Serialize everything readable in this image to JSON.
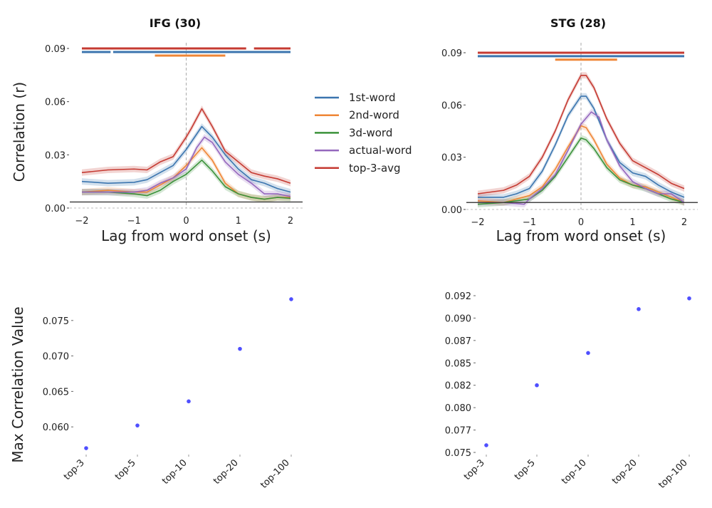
{
  "chart_data": [
    {
      "type": "line",
      "title": "IFG (30)",
      "xlabel": "Lag from word onset (s)",
      "ylabel": "Correlation (r)",
      "xlim": [
        -2,
        2
      ],
      "ylim": [
        0,
        0.09
      ],
      "xticks": [
        "−2",
        "−1",
        "0",
        "1",
        "2"
      ],
      "xtick_values": [
        -2,
        -1,
        0,
        1,
        2
      ],
      "yticks": [
        "0.00",
        "0.03",
        "0.06",
        "0.09"
      ],
      "ytick_values": [
        0,
        0.03,
        0.06,
        0.09
      ],
      "baseline": 0.0034,
      "vline": 0,
      "legend": {
        "placement": "right",
        "entries": [
          "1st-word",
          "2nd-word",
          "3d-word",
          "actual-word",
          "top-3-avg"
        ]
      },
      "series": [
        {
          "name": "1st-word",
          "color": "#3b75af",
          "x": [
            -2,
            -1.5,
            -1,
            -0.75,
            -0.5,
            -0.25,
            0,
            0.3,
            0.5,
            0.75,
            1,
            1.25,
            1.5,
            1.75,
            2
          ],
          "y": [
            0.015,
            0.014,
            0.0145,
            0.016,
            0.02,
            0.024,
            0.033,
            0.046,
            0.04,
            0.03,
            0.022,
            0.016,
            0.014,
            0.011,
            0.009
          ]
        },
        {
          "name": "2nd-word",
          "color": "#ef8636",
          "x": [
            -2,
            -1.5,
            -1,
            -0.75,
            -0.5,
            -0.25,
            0,
            0.3,
            0.5,
            0.75,
            1,
            1.25,
            1.5,
            1.75,
            2
          ],
          "y": [
            0.009,
            0.01,
            0.009,
            0.009,
            0.013,
            0.017,
            0.024,
            0.034,
            0.027,
            0.014,
            0.008,
            0.006,
            0.005,
            0.006,
            0.006
          ]
        },
        {
          "name": "3d-word",
          "color": "#3b923a",
          "x": [
            -2,
            -1.5,
            -1,
            -0.75,
            -0.5,
            -0.25,
            0,
            0.3,
            0.5,
            0.75,
            1,
            1.25,
            1.5,
            1.75,
            2
          ],
          "y": [
            0.009,
            0.009,
            0.008,
            0.007,
            0.01,
            0.015,
            0.019,
            0.027,
            0.021,
            0.012,
            0.008,
            0.006,
            0.005,
            0.006,
            0.0055
          ]
        },
        {
          "name": "actual-word",
          "color": "#9467bd",
          "x": [
            -2,
            -1.5,
            -1,
            -0.75,
            -0.5,
            -0.25,
            0,
            0.2,
            0.35,
            0.5,
            0.75,
            1,
            1.25,
            1.5,
            1.75,
            2
          ],
          "y": [
            0.009,
            0.009,
            0.009,
            0.01,
            0.014,
            0.017,
            0.022,
            0.034,
            0.04,
            0.037,
            0.026,
            0.019,
            0.014,
            0.008,
            0.008,
            0.0065
          ]
        },
        {
          "name": "top-3-avg",
          "color": "#c53a32",
          "x": [
            -2,
            -1.5,
            -1,
            -0.75,
            -0.5,
            -0.25,
            0,
            0.1,
            0.3,
            0.5,
            0.75,
            1,
            1.25,
            1.5,
            1.75,
            2
          ],
          "y": [
            0.02,
            0.0215,
            0.022,
            0.0215,
            0.026,
            0.029,
            0.04,
            0.045,
            0.056,
            0.046,
            0.032,
            0.026,
            0.02,
            0.018,
            0.0165,
            0.014
          ]
        }
      ],
      "significance": [
        {
          "series": "top-3-avg",
          "color": "#c53a32",
          "level": 0.09,
          "ranges": [
            [
              -2,
              1.15
            ],
            [
              1.3,
              2
            ]
          ]
        },
        {
          "series": "1st-word",
          "color": "#3b75af",
          "level": 0.088,
          "ranges": [
            [
              -2,
              -1.45
            ],
            [
              -1.4,
              2
            ]
          ]
        },
        {
          "series": "2nd-word",
          "color": "#ef8636",
          "level": 0.086,
          "ranges": [
            [
              -0.6,
              0.75
            ]
          ]
        }
      ]
    },
    {
      "type": "line",
      "title": "STG (28)",
      "xlabel": "Lag from word onset (s)",
      "ylabel": "",
      "xlim": [
        -2,
        2
      ],
      "ylim": [
        0,
        0.09
      ],
      "xticks": [
        "−2",
        "−1",
        "0",
        "1",
        "2"
      ],
      "xtick_values": [
        -2,
        -1,
        0,
        1,
        2
      ],
      "yticks": [
        "0.00",
        "0.03",
        "0.06",
        "0.09"
      ],
      "ytick_values": [
        0,
        0.03,
        0.06,
        0.09
      ],
      "baseline": 0.004,
      "vline": 0,
      "series": [
        {
          "name": "1st-word",
          "color": "#3b75af",
          "x": [
            -2,
            -1.5,
            -1.25,
            -1,
            -0.75,
            -0.5,
            -0.25,
            0,
            0.1,
            0.25,
            0.5,
            0.75,
            1,
            1.25,
            1.5,
            1.75,
            2
          ],
          "y": [
            0.007,
            0.007,
            0.009,
            0.012,
            0.022,
            0.037,
            0.054,
            0.065,
            0.065,
            0.058,
            0.04,
            0.027,
            0.021,
            0.019,
            0.014,
            0.01,
            0.007
          ]
        },
        {
          "name": "2nd-word",
          "color": "#ef8636",
          "x": [
            -2,
            -1.5,
            -1,
            -0.75,
            -0.5,
            -0.25,
            0,
            0.1,
            0.25,
            0.5,
            0.75,
            1,
            1.25,
            1.5,
            1.75,
            2
          ],
          "y": [
            0.005,
            0.004,
            0.008,
            0.013,
            0.023,
            0.036,
            0.048,
            0.047,
            0.04,
            0.026,
            0.018,
            0.014,
            0.013,
            0.01,
            0.007,
            0.004
          ]
        },
        {
          "name": "3d-word",
          "color": "#3b923a",
          "x": [
            -2,
            -1.5,
            -1,
            -0.75,
            -0.5,
            -0.25,
            0,
            0.1,
            0.25,
            0.5,
            0.75,
            1,
            1.25,
            1.5,
            1.75,
            2
          ],
          "y": [
            0.003,
            0.004,
            0.006,
            0.011,
            0.019,
            0.03,
            0.041,
            0.04,
            0.035,
            0.024,
            0.017,
            0.014,
            0.012,
            0.009,
            0.006,
            0.004
          ]
        },
        {
          "name": "actual-word",
          "color": "#9467bd",
          "x": [
            -2,
            -1.5,
            -1.1,
            -1,
            -0.75,
            -0.5,
            -0.25,
            0,
            0.2,
            0.35,
            0.5,
            0.75,
            1,
            1.25,
            1.5,
            1.75,
            2
          ],
          "y": [
            0.004,
            0.004,
            0.003,
            0.006,
            0.012,
            0.02,
            0.034,
            0.049,
            0.056,
            0.053,
            0.04,
            0.025,
            0.016,
            0.012,
            0.009,
            0.009,
            0.004
          ]
        },
        {
          "name": "top-3-avg",
          "color": "#c53a32",
          "x": [
            -2,
            -1.5,
            -1.25,
            -1,
            -0.75,
            -0.5,
            -0.25,
            0,
            0.1,
            0.25,
            0.5,
            0.75,
            1,
            1.25,
            1.5,
            1.75,
            2
          ],
          "y": [
            0.009,
            0.011,
            0.014,
            0.019,
            0.03,
            0.045,
            0.063,
            0.077,
            0.077,
            0.07,
            0.052,
            0.038,
            0.028,
            0.024,
            0.02,
            0.015,
            0.012
          ]
        }
      ],
      "significance": [
        {
          "series": "top-3-avg",
          "color": "#c53a32",
          "level": 0.09,
          "ranges": [
            [
              -2,
              2
            ]
          ]
        },
        {
          "series": "1st-word",
          "color": "#3b75af",
          "level": 0.088,
          "ranges": [
            [
              -2,
              2
            ]
          ]
        },
        {
          "series": "2nd-word",
          "color": "#ef8636",
          "level": 0.086,
          "ranges": [
            [
              -0.5,
              0.7
            ]
          ]
        }
      ]
    },
    {
      "type": "scatter",
      "title": "",
      "xlabel": "",
      "ylabel": "Max Correlation Value",
      "categories": [
        "top-3",
        "top-5",
        "top-10",
        "top-20",
        "top-100"
      ],
      "values": [
        0.057,
        0.0602,
        0.0636,
        0.071,
        0.078
      ],
      "yticks": [
        "0.060",
        "0.065",
        "0.070",
        "0.075"
      ],
      "ytick_values": [
        0.06,
        0.065,
        0.07,
        0.075
      ],
      "ylim": [
        0.0563,
        0.0795
      ],
      "color": "#4f4fff"
    },
    {
      "type": "scatter",
      "title": "",
      "xlabel": "",
      "ylabel": "",
      "categories": [
        "top-3",
        "top-5",
        "top-10",
        "top-20",
        "top-100"
      ],
      "values": [
        0.0758,
        0.0825,
        0.0861,
        0.091,
        0.0922
      ],
      "yticks": [
        "0.075",
        "0.077",
        "0.080",
        "0.082",
        "0.085",
        "0.087",
        "0.090",
        "0.092"
      ],
      "ytick_values": [
        0.075,
        0.0775,
        0.08,
        0.0825,
        0.085,
        0.0875,
        0.09,
        0.0925
      ],
      "ylim": [
        0.075,
        0.0925
      ],
      "color": "#4f4fff"
    }
  ]
}
